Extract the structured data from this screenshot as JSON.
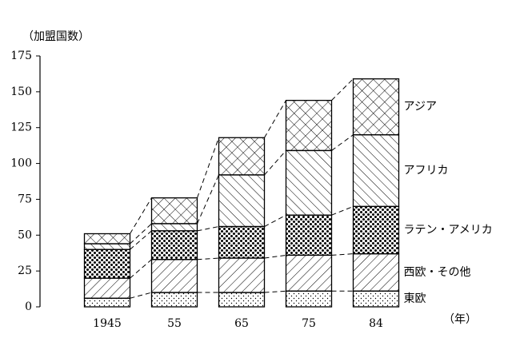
{
  "chart_data": {
    "type": "stacked-bar",
    "ylabel": "（加盟国数）",
    "xlabel": "（年）",
    "categories": [
      "1945",
      "55",
      "65",
      "75",
      "84"
    ],
    "series": [
      {
        "name": "東欧",
        "color": "#000000",
        "pattern": "sparse-dots",
        "values": [
          6,
          10,
          10,
          11,
          11
        ]
      },
      {
        "name": "西欧・その他",
        "color": "#000000",
        "pattern": "back-hatch",
        "values": [
          14,
          23,
          24,
          25,
          26
        ]
      },
      {
        "name": "ラテン・アメリカ",
        "color": "#000000",
        "pattern": "dense-dots",
        "values": [
          20,
          20,
          22,
          28,
          33
        ]
      },
      {
        "name": "アフリカ",
        "color": "#000000",
        "pattern": "forward-hatch",
        "values": [
          4,
          5,
          36,
          45,
          50
        ]
      },
      {
        "name": "アジア",
        "color": "#000000",
        "pattern": "cross-hatch",
        "values": [
          7,
          18,
          26,
          35,
          39
        ]
      }
    ],
    "ylim": [
      0,
      175
    ],
    "yticks": [
      0,
      25,
      50,
      75,
      100,
      125,
      150,
      175
    ],
    "connectors": true
  }
}
